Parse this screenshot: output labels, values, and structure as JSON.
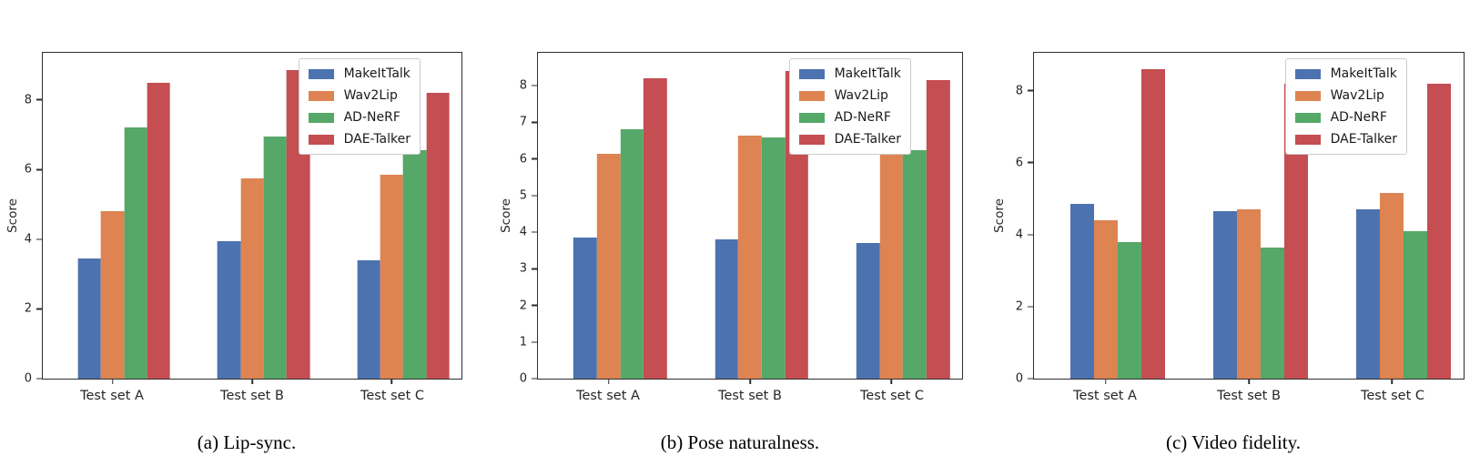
{
  "chart_data": [
    {
      "type": "bar",
      "title": "(a) Lip-sync.",
      "xlabel": "",
      "ylabel": "Score",
      "categories": [
        "Test set A",
        "Test set B",
        "Test set C"
      ],
      "series": [
        {
          "name": "MakeItTalk",
          "color": "#4C72B0",
          "values": [
            3.45,
            3.95,
            3.4
          ]
        },
        {
          "name": "Wav2Lip",
          "color": "#DD8452",
          "values": [
            4.8,
            5.75,
            5.85
          ]
        },
        {
          "name": "AD-NeRF",
          "color": "#55A868",
          "values": [
            7.2,
            6.95,
            6.55
          ]
        },
        {
          "name": "DAE-Talker",
          "color": "#C44E52",
          "values": [
            8.5,
            8.85,
            8.2
          ]
        }
      ],
      "ylim": [
        0,
        9.35
      ],
      "yticks": [
        0,
        2,
        4,
        6,
        8
      ],
      "legend_position": "upper right",
      "grid": false
    },
    {
      "type": "bar",
      "title": "(b) Pose naturalness.",
      "xlabel": "",
      "ylabel": "Score",
      "categories": [
        "Test set A",
        "Test set B",
        "Test set C"
      ],
      "series": [
        {
          "name": "MakeItTalk",
          "color": "#4C72B0",
          "values": [
            3.85,
            3.8,
            3.7
          ]
        },
        {
          "name": "Wav2Lip",
          "color": "#DD8452",
          "values": [
            6.15,
            6.65,
            6.6
          ]
        },
        {
          "name": "AD-NeRF",
          "color": "#55A868",
          "values": [
            6.8,
            6.6,
            6.25
          ]
        },
        {
          "name": "DAE-Talker",
          "color": "#C44E52",
          "values": [
            8.2,
            8.4,
            8.15
          ]
        }
      ],
      "ylim": [
        0,
        8.9
      ],
      "yticks": [
        0,
        1,
        2,
        3,
        4,
        5,
        6,
        7,
        8
      ],
      "legend_position": "upper right",
      "grid": false
    },
    {
      "type": "bar",
      "title": "(c) Video fidelity.",
      "xlabel": "",
      "ylabel": "Score",
      "categories": [
        "Test set A",
        "Test set B",
        "Test set C"
      ],
      "series": [
        {
          "name": "MakeItTalk",
          "color": "#4C72B0",
          "values": [
            4.85,
            4.65,
            4.7
          ]
        },
        {
          "name": "Wav2Lip",
          "color": "#DD8452",
          "values": [
            4.4,
            4.7,
            5.15
          ]
        },
        {
          "name": "AD-NeRF",
          "color": "#55A868",
          "values": [
            3.8,
            3.65,
            4.1
          ]
        },
        {
          "name": "DAE-Talker",
          "color": "#C44E52",
          "values": [
            8.6,
            8.2,
            8.2
          ]
        }
      ],
      "ylim": [
        0,
        9.05
      ],
      "yticks": [
        0,
        2,
        4,
        6,
        8
      ],
      "legend_position": "upper right",
      "grid": false
    }
  ]
}
